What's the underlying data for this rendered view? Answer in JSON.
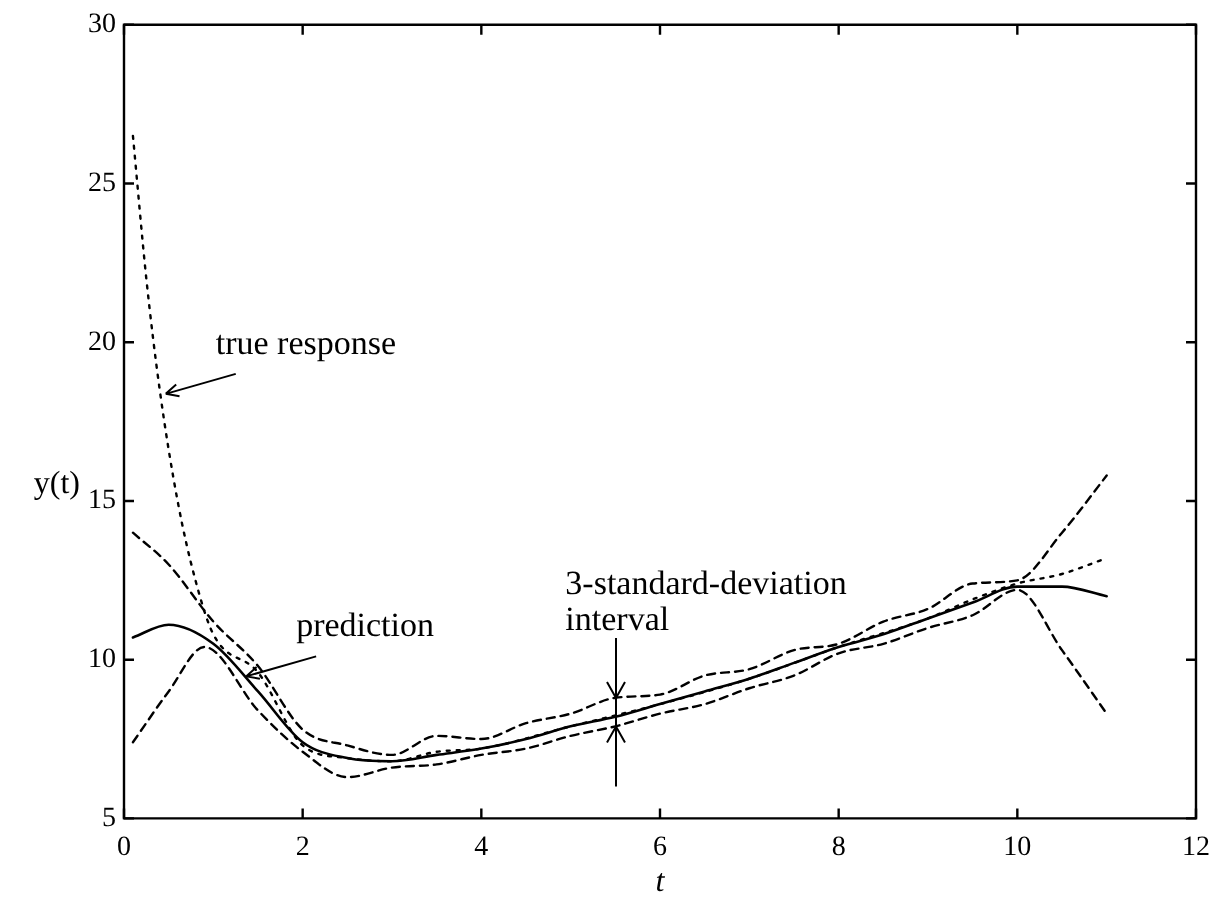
{
  "chart_data": {
    "type": "line",
    "xlabel": "t",
    "ylabel": "y(t)",
    "xlim": [
      0,
      12
    ],
    "xticks": [
      0,
      2,
      4,
      6,
      8,
      10,
      12
    ],
    "ylim": [
      5,
      30
    ],
    "yticks": [
      5,
      10,
      15,
      20,
      25,
      30
    ],
    "grid": false,
    "legend": false,
    "marker": "none",
    "series": [
      {
        "color": "#000000",
        "line_style": "solid",
        "x": [
          0.1,
          0.5,
          1,
          1.5,
          2,
          2.5,
          3,
          3.5,
          4,
          4.5,
          5,
          5.5,
          6,
          6.5,
          7,
          7.5,
          8,
          8.5,
          9,
          9.5,
          10,
          10.5,
          11
        ],
        "values": [
          10.7,
          11.1,
          10.5,
          9,
          7.4,
          6.9,
          6.8,
          7,
          7.2,
          7.5,
          7.9,
          8.2,
          8.6,
          9,
          9.4,
          9.9,
          10.4,
          10.8,
          11.3,
          11.8,
          12.3,
          12.3,
          12
        ]
      },
      {
        "color": "#000000",
        "line_style": "dotted",
        "x": [
          0.1,
          0.25,
          0.4,
          0.6,
          0.8,
          1,
          1.5,
          2,
          2.5,
          3,
          3.5,
          4,
          5,
          6,
          7,
          8,
          9,
          9.5,
          10,
          10.5,
          11
        ],
        "values": [
          26.5,
          22,
          18.5,
          15,
          12.5,
          10.8,
          9.6,
          7.3,
          6.9,
          6.8,
          7.1,
          7.2,
          7.9,
          8.6,
          9.4,
          10.4,
          11.3,
          11.9,
          12.4,
          12.7,
          13.2
        ]
      },
      {
        "color": "#000000",
        "line_style": "dashed",
        "x": [
          0.1,
          0.5,
          1,
          1.5,
          2,
          2.5,
          3,
          3.5,
          4,
          4.5,
          5,
          5.5,
          6,
          6.5,
          7,
          7.5,
          8,
          8.5,
          9,
          9.5,
          10,
          10.5,
          11
        ],
        "values": [
          14,
          13,
          11.2,
          9.8,
          7.8,
          7.3,
          7,
          7.6,
          7.5,
          8,
          8.3,
          8.8,
          8.9,
          9.5,
          9.7,
          10.3,
          10.5,
          11.2,
          11.6,
          12.4,
          12.5,
          14,
          15.8
        ]
      },
      {
        "color": "#000000",
        "line_style": "dashed",
        "x": [
          0.1,
          0.5,
          0.9,
          1.5,
          2,
          2.5,
          3,
          3.5,
          4,
          4.5,
          5,
          5.5,
          6,
          6.5,
          7,
          7.5,
          8,
          8.5,
          9,
          9.5,
          10,
          10.5,
          11
        ],
        "values": [
          7.4,
          9,
          10.4,
          8.4,
          7.1,
          6.3,
          6.6,
          6.7,
          7,
          7.2,
          7.6,
          7.9,
          8.3,
          8.6,
          9.1,
          9.5,
          10.2,
          10.5,
          11,
          11.4,
          12.2,
          10.3,
          8.3
        ]
      }
    ],
    "annotations": [
      {
        "text": "true response",
        "x": 0.4,
        "y": 18.5
      },
      {
        "text": "prediction",
        "x": 1.3,
        "y": 9.6
      },
      {
        "text": "3-standard-deviation interval",
        "x": 5.5,
        "y": 8.2
      }
    ]
  }
}
